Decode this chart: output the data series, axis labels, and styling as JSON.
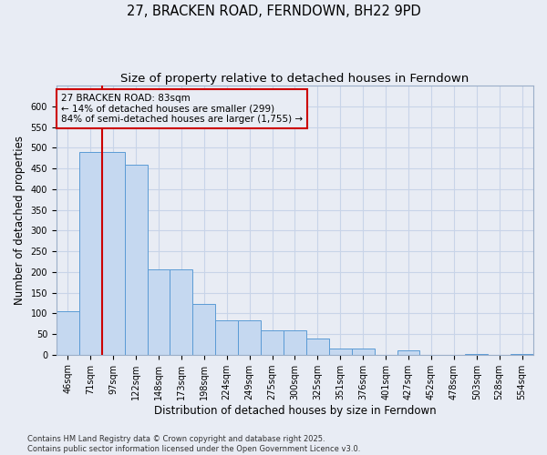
{
  "title": "27, BRACKEN ROAD, FERNDOWN, BH22 9PD",
  "subtitle": "Size of property relative to detached houses in Ferndown",
  "xlabel": "Distribution of detached houses by size in Ferndown",
  "ylabel": "Number of detached properties",
  "categories": [
    "46sqm",
    "71sqm",
    "97sqm",
    "122sqm",
    "148sqm",
    "173sqm",
    "198sqm",
    "224sqm",
    "249sqm",
    "275sqm",
    "300sqm",
    "325sqm",
    "351sqm",
    "376sqm",
    "401sqm",
    "427sqm",
    "452sqm",
    "478sqm",
    "503sqm",
    "528sqm",
    "554sqm"
  ],
  "values": [
    105,
    490,
    490,
    460,
    207,
    207,
    122,
    83,
    83,
    58,
    58,
    40,
    14,
    14,
    0,
    10,
    0,
    0,
    2,
    0,
    2
  ],
  "bar_color": "#c5d8f0",
  "bar_edge_color": "#5b9bd5",
  "grid_color": "#c8d4e8",
  "background_color": "#e8ecf4",
  "vline_x": 1.5,
  "vline_color": "#cc0000",
  "annotation_text": "27 BRACKEN ROAD: 83sqm\n← 14% of detached houses are smaller (299)\n84% of semi-detached houses are larger (1,755) →",
  "annotation_box_color": "#cc0000",
  "ylim": [
    0,
    650
  ],
  "yticks": [
    0,
    50,
    100,
    150,
    200,
    250,
    300,
    350,
    400,
    450,
    500,
    550,
    600
  ],
  "footer": "Contains HM Land Registry data © Crown copyright and database right 2025.\nContains public sector information licensed under the Open Government Licence v3.0.",
  "title_fontsize": 10.5,
  "subtitle_fontsize": 9.5,
  "tick_fontsize": 7,
  "ylabel_fontsize": 8.5,
  "xlabel_fontsize": 8.5,
  "footer_fontsize": 6
}
